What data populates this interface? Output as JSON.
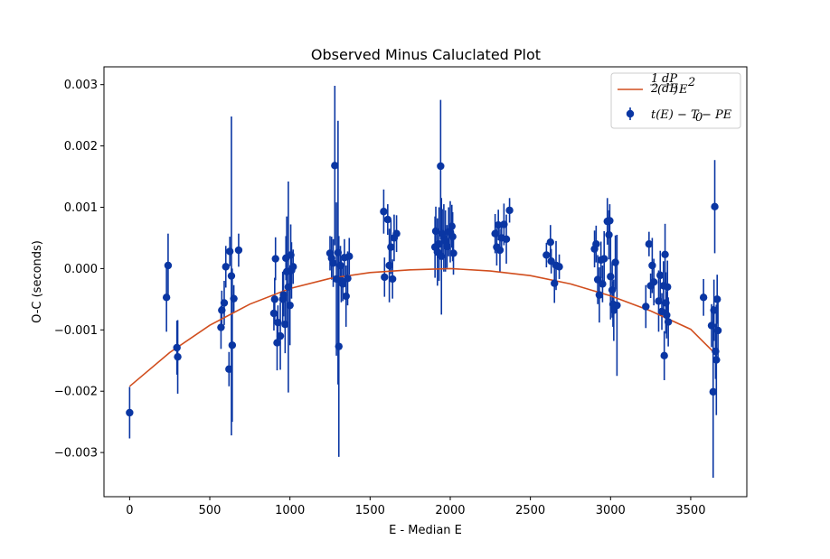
{
  "chart_data": {
    "type": "scatter",
    "title": "Observed Minus Caluclated Plot",
    "xlabel": "E - Median E",
    "ylabel": "O-C (seconds)",
    "xlim": [
      -160,
      3850
    ],
    "ylim": [
      -0.00372,
      0.00329
    ],
    "xticks": [
      "0",
      "500",
      "1000",
      "1500",
      "2000",
      "2500",
      "3000",
      "3500"
    ],
    "xtick_values": [
      0,
      500,
      1000,
      1500,
      2000,
      2500,
      3000,
      3500
    ],
    "yticks": [
      "−0.003",
      "−0.002",
      "−0.001",
      "0.000",
      "0.001",
      "0.002",
      "0.003"
    ],
    "ytick_values": [
      -0.003,
      -0.002,
      -0.001,
      0.0,
      0.001,
      0.002,
      0.003
    ],
    "grid": false,
    "legend_position": "top-right",
    "colors": {
      "fit": "#d14e1e",
      "points": "#0a36a3"
    },
    "series": [
      {
        "name": "fit_label",
        "kind": "line",
        "x": [
          0,
          250,
          500,
          750,
          1000,
          1250,
          1500,
          1750,
          2000,
          2250,
          2500,
          2750,
          3000,
          3250,
          3500,
          3650
        ],
        "y": [
          -0.00192,
          -0.00137,
          -0.000925,
          -0.00058,
          -0.000325,
          -0.00016,
          -6.5e-05,
          -2e-05,
          0.0,
          -4e-05,
          -0.000115,
          -0.00025,
          -0.000445,
          -0.00069,
          -0.00099,
          -0.00138
        ]
      },
      {
        "name": "data_label",
        "kind": "errorbar",
        "points": [
          [
            0,
            -0.00235,
            0.00042
          ],
          [
            230,
            -0.00047,
            0.00056
          ],
          [
            240,
            5e-05,
            0.00052
          ],
          [
            295,
            -0.00129,
            0.00044
          ],
          [
            300,
            -0.00144,
            0.0006
          ],
          [
            570,
            -0.00096,
            0.00035
          ],
          [
            575,
            -0.00068,
            0.00032
          ],
          [
            590,
            -0.00056,
            0.00036
          ],
          [
            600,
            3e-05,
            0.00034
          ],
          [
            620,
            -0.00164,
            0.00028
          ],
          [
            625,
            0.00028,
            0.00024
          ],
          [
            635,
            -0.00012,
            0.0026
          ],
          [
            640,
            -0.00125,
            0.00125
          ],
          [
            650,
            -0.00049,
            0.00022
          ],
          [
            680,
            0.0003,
            0.00027
          ],
          [
            900,
            -0.00073,
            0.00028
          ],
          [
            905,
            -0.0005,
            0.00035
          ],
          [
            910,
            0.00016,
            0.00035
          ],
          [
            920,
            -0.00121,
            0.00045
          ],
          [
            925,
            -0.00088,
            0.00028
          ],
          [
            940,
            -0.0011,
            0.00055
          ],
          [
            955,
            -0.0005,
            0.00045
          ],
          [
            960,
            -0.00043,
            0.00035
          ],
          [
            970,
            -0.00091,
            0.00047
          ],
          [
            975,
            0.00017,
            0.00036
          ],
          [
            980,
            -5e-05,
            0.0009
          ],
          [
            990,
            -0.0003,
            0.00172
          ],
          [
            1000,
            -0.0006,
            0.00065
          ],
          [
            1005,
            0.00022,
            0.0005
          ],
          [
            1010,
            -3e-05,
            0.00046
          ],
          [
            1020,
            3e-05,
            0.00028
          ],
          [
            1250,
            0.00025,
            0.00028
          ],
          [
            1260,
            0.00017,
            0.00035
          ],
          [
            1270,
            9e-05,
            0.00039
          ],
          [
            1280,
            0.00168,
            0.0013
          ],
          [
            1290,
            -0.00017,
            0.00125
          ],
          [
            1300,
            0.00026,
            0.00215
          ],
          [
            1305,
            -0.00127,
            0.0018
          ],
          [
            1315,
            5e-05,
            0.00032
          ],
          [
            1320,
            -0.0002,
            0.00035
          ],
          [
            1330,
            -0.00025,
            0.00028
          ],
          [
            1340,
            0.00018,
            0.0003
          ],
          [
            1350,
            -0.00045,
            0.0005
          ],
          [
            1360,
            -0.00016,
            0.00044
          ],
          [
            1370,
            0.0002,
            0.0003
          ],
          [
            1585,
            0.00093,
            0.00036
          ],
          [
            1590,
            -0.00014,
            0.00032
          ],
          [
            1610,
            0.0008,
            0.00025
          ],
          [
            1620,
            5e-05,
            0.0006
          ],
          [
            1630,
            0.00035,
            0.00044
          ],
          [
            1640,
            -0.00017,
            0.00032
          ],
          [
            1650,
            0.0005,
            0.00038
          ],
          [
            1665,
            0.00057,
            0.0003
          ],
          [
            1905,
            0.00035,
            0.0005
          ],
          [
            1910,
            0.00061,
            0.0004
          ],
          [
            1920,
            0.00027,
            0.00055
          ],
          [
            1930,
            0.0004,
            0.0006
          ],
          [
            1940,
            0.00167,
            0.00108
          ],
          [
            1945,
            0.0002,
            0.00095
          ],
          [
            1950,
            0.00057,
            0.0004
          ],
          [
            1960,
            0.0005,
            0.00055
          ],
          [
            1970,
            0.00045,
            0.0005
          ],
          [
            1980,
            0.00036,
            0.00035
          ],
          [
            1990,
            0.0006,
            0.0004
          ],
          [
            2000,
            0.0006,
            0.0005
          ],
          [
            2010,
            0.00069,
            0.00035
          ],
          [
            2015,
            0.00052,
            0.0004
          ],
          [
            2020,
            0.00025,
            0.00035
          ],
          [
            2280,
            0.00057,
            0.00032
          ],
          [
            2290,
            0.00035,
            0.0003
          ],
          [
            2300,
            0.00071,
            0.00025
          ],
          [
            2310,
            0.0003,
            0.00035
          ],
          [
            2320,
            0.0005,
            0.0002
          ],
          [
            2335,
            0.00072,
            0.00034
          ],
          [
            2350,
            0.00048,
            0.0004
          ],
          [
            2370,
            0.00095,
            0.0002
          ],
          [
            2600,
            0.00022,
            0.0002
          ],
          [
            2625,
            0.00043,
            0.00028
          ],
          [
            2630,
            0.00012,
            0.0002
          ],
          [
            2650,
            -0.00024,
            0.00032
          ],
          [
            2660,
            5e-05,
            0.0004
          ],
          [
            2680,
            3e-05,
            0.0002
          ],
          [
            2900,
            0.00032,
            0.0003
          ],
          [
            2910,
            0.0004,
            0.0003
          ],
          [
            2920,
            -0.00018,
            0.0004
          ],
          [
            2930,
            -0.00043,
            0.00045
          ],
          [
            2940,
            0.00014,
            0.0003
          ],
          [
            2950,
            -0.00025,
            0.0003
          ],
          [
            2960,
            0.00016,
            0.00045
          ],
          [
            2980,
            0.00077,
            0.00038
          ],
          [
            2990,
            0.00055,
            0.0004
          ],
          [
            2995,
            0.00078,
            0.00027
          ],
          [
            3000,
            -0.00013,
            0.0007
          ],
          [
            3010,
            -0.00035,
            0.00045
          ],
          [
            3015,
            -0.00058,
            0.00037
          ],
          [
            3020,
            -0.00068,
            0.0005
          ],
          [
            3030,
            0.0001,
            0.00044
          ],
          [
            3040,
            -0.0006,
            0.00115
          ],
          [
            3220,
            -0.00062,
            0.00035
          ],
          [
            3240,
            0.0004,
            0.0002
          ],
          [
            3250,
            -0.00028,
            0.0002
          ],
          [
            3260,
            5e-05,
            0.00045
          ],
          [
            3270,
            -0.00022,
            0.00038
          ],
          [
            3300,
            -0.00053,
            0.0005
          ],
          [
            3310,
            -0.00011,
            0.0004
          ],
          [
            3320,
            -0.0007,
            0.0003
          ],
          [
            3330,
            -0.00028,
            0.0004
          ],
          [
            3335,
            -0.00142,
            0.0004
          ],
          [
            3340,
            0.00023,
            0.0005
          ],
          [
            3345,
            -0.00056,
            0.0005
          ],
          [
            3350,
            -0.00076,
            0.00038
          ],
          [
            3355,
            -0.0003,
            0.00043
          ],
          [
            3360,
            -0.00087,
            0.0004
          ],
          [
            3580,
            -0.00047,
            0.0003
          ],
          [
            3630,
            -0.00093,
            0.00035
          ],
          [
            3640,
            -0.00201,
            0.0014
          ],
          [
            3645,
            -0.00068,
            0.0005
          ],
          [
            3650,
            0.00101,
            0.00076
          ],
          [
            3655,
            -0.00135,
            0.00045
          ],
          [
            3660,
            -0.00149,
            0.0009
          ],
          [
            3665,
            -0.0005,
            0.0004
          ],
          [
            3670,
            -0.00101,
            0.0005
          ]
        ]
      }
    ]
  }
}
